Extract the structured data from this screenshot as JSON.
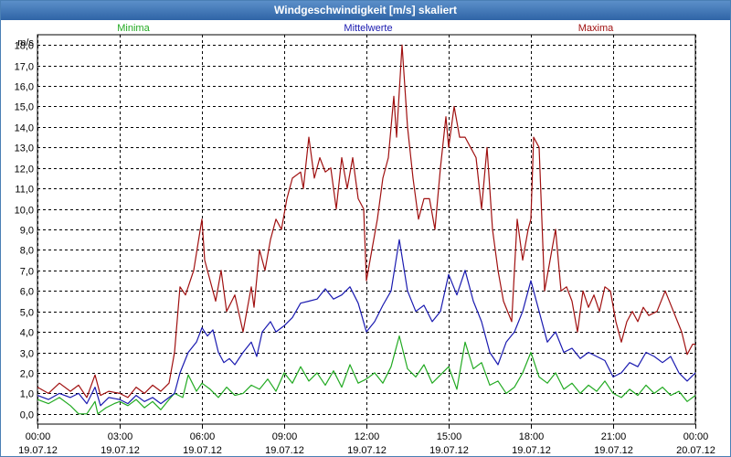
{
  "window": {
    "title": "Windgeschwindigkeit [m/s] skaliert"
  },
  "chart_data": {
    "type": "line",
    "title": "Windgeschwindigkeit [m/s] skaliert",
    "ylabel": "m/s",
    "xlabel": "",
    "ylim": [
      -0.5,
      18.5
    ],
    "yticks": [
      0,
      1,
      2,
      3,
      4,
      5,
      6,
      7,
      8,
      9,
      10,
      11,
      12,
      13,
      14,
      15,
      16,
      17,
      18
    ],
    "ytick_labels": [
      "0,0",
      "1,0",
      "2,0",
      "3,0",
      "4,0",
      "5,0",
      "6,0",
      "7,0",
      "8,0",
      "9,0",
      "10,0",
      "11,0",
      "12,0",
      "13,0",
      "14,0",
      "15,0",
      "16,0",
      "17,0",
      "18,0"
    ],
    "x_range_hours": [
      0,
      24
    ],
    "xticks": [
      {
        "h": 0,
        "time": "00:00",
        "date": "19.07.12"
      },
      {
        "h": 3,
        "time": "03:00",
        "date": "19.07.12"
      },
      {
        "h": 6,
        "time": "06:00",
        "date": "19.07.12"
      },
      {
        "h": 9,
        "time": "09:00",
        "date": "19.07.12"
      },
      {
        "h": 12,
        "time": "12:00",
        "date": "19.07.12"
      },
      {
        "h": 15,
        "time": "15:00",
        "date": "19.07.12"
      },
      {
        "h": 18,
        "time": "18:00",
        "date": "19.07.12"
      },
      {
        "h": 21,
        "time": "21:00",
        "date": "19.07.12"
      },
      {
        "h": 24,
        "time": "00:00",
        "date": "20.07.12"
      }
    ],
    "grid": true,
    "series": [
      {
        "name": "Minima",
        "color": "#22aa22",
        "legend_position": "left",
        "points": [
          [
            0.0,
            0.7
          ],
          [
            0.4,
            0.5
          ],
          [
            0.8,
            0.8
          ],
          [
            1.2,
            0.4
          ],
          [
            1.5,
            0.0
          ],
          [
            1.8,
            0.0
          ],
          [
            2.1,
            0.6
          ],
          [
            2.2,
            0.0
          ],
          [
            2.5,
            0.3
          ],
          [
            2.8,
            0.5
          ],
          [
            3.0,
            0.6
          ],
          [
            3.3,
            0.4
          ],
          [
            3.6,
            0.7
          ],
          [
            3.9,
            0.3
          ],
          [
            4.2,
            0.6
          ],
          [
            4.5,
            0.2
          ],
          [
            4.8,
            0.7
          ],
          [
            5.0,
            1.0
          ],
          [
            5.3,
            0.8
          ],
          [
            5.5,
            1.9
          ],
          [
            5.8,
            1.1
          ],
          [
            6.0,
            1.5
          ],
          [
            6.3,
            1.2
          ],
          [
            6.6,
            0.8
          ],
          [
            6.9,
            1.3
          ],
          [
            7.2,
            0.9
          ],
          [
            7.5,
            1.0
          ],
          [
            7.8,
            1.4
          ],
          [
            8.1,
            1.2
          ],
          [
            8.4,
            1.7
          ],
          [
            8.7,
            1.1
          ],
          [
            9.0,
            2.0
          ],
          [
            9.3,
            1.5
          ],
          [
            9.6,
            2.3
          ],
          [
            9.9,
            1.6
          ],
          [
            10.2,
            2.0
          ],
          [
            10.5,
            1.4
          ],
          [
            10.8,
            2.1
          ],
          [
            11.1,
            1.3
          ],
          [
            11.4,
            2.4
          ],
          [
            11.7,
            1.5
          ],
          [
            12.0,
            1.7
          ],
          [
            12.3,
            2.0
          ],
          [
            12.6,
            1.5
          ],
          [
            12.9,
            2.3
          ],
          [
            13.2,
            3.8
          ],
          [
            13.5,
            2.2
          ],
          [
            13.8,
            1.8
          ],
          [
            14.1,
            2.4
          ],
          [
            14.4,
            1.5
          ],
          [
            14.7,
            1.9
          ],
          [
            15.0,
            2.3
          ],
          [
            15.3,
            1.2
          ],
          [
            15.6,
            3.5
          ],
          [
            15.9,
            2.2
          ],
          [
            16.2,
            2.5
          ],
          [
            16.5,
            1.4
          ],
          [
            16.8,
            1.6
          ],
          [
            17.1,
            1.0
          ],
          [
            17.4,
            1.3
          ],
          [
            17.7,
            2.0
          ],
          [
            18.0,
            3.0
          ],
          [
            18.3,
            1.8
          ],
          [
            18.6,
            1.5
          ],
          [
            18.9,
            2.0
          ],
          [
            19.2,
            1.2
          ],
          [
            19.5,
            1.5
          ],
          [
            19.8,
            1.0
          ],
          [
            20.1,
            1.4
          ],
          [
            20.4,
            1.1
          ],
          [
            20.7,
            1.6
          ],
          [
            21.0,
            1.0
          ],
          [
            21.3,
            0.8
          ],
          [
            21.6,
            1.2
          ],
          [
            21.9,
            0.9
          ],
          [
            22.2,
            1.4
          ],
          [
            22.5,
            1.0
          ],
          [
            22.8,
            1.3
          ],
          [
            23.1,
            0.9
          ],
          [
            23.4,
            1.1
          ],
          [
            23.7,
            0.6
          ],
          [
            24.0,
            0.9
          ]
        ]
      },
      {
        "name": "Mittelwerte",
        "color": "#1a1ab0",
        "legend_position": "center",
        "points": [
          [
            0.0,
            0.9
          ],
          [
            0.4,
            0.7
          ],
          [
            0.8,
            1.0
          ],
          [
            1.2,
            0.8
          ],
          [
            1.5,
            1.0
          ],
          [
            1.8,
            0.5
          ],
          [
            2.1,
            1.3
          ],
          [
            2.3,
            0.4
          ],
          [
            2.6,
            0.8
          ],
          [
            3.0,
            0.7
          ],
          [
            3.3,
            0.5
          ],
          [
            3.6,
            0.9
          ],
          [
            3.9,
            0.6
          ],
          [
            4.2,
            0.8
          ],
          [
            4.5,
            0.5
          ],
          [
            4.8,
            0.8
          ],
          [
            5.0,
            1.0
          ],
          [
            5.2,
            2.0
          ],
          [
            5.5,
            3.0
          ],
          [
            5.8,
            3.5
          ],
          [
            6.0,
            4.2
          ],
          [
            6.2,
            3.8
          ],
          [
            6.4,
            4.1
          ],
          [
            6.6,
            3.0
          ],
          [
            6.8,
            2.5
          ],
          [
            7.0,
            2.7
          ],
          [
            7.2,
            2.4
          ],
          [
            7.5,
            3.0
          ],
          [
            7.8,
            3.5
          ],
          [
            8.0,
            2.8
          ],
          [
            8.2,
            4.0
          ],
          [
            8.5,
            4.5
          ],
          [
            8.7,
            4.0
          ],
          [
            9.0,
            4.3
          ],
          [
            9.3,
            4.7
          ],
          [
            9.6,
            5.4
          ],
          [
            9.9,
            5.5
          ],
          [
            10.2,
            5.6
          ],
          [
            10.5,
            6.1
          ],
          [
            10.8,
            5.6
          ],
          [
            11.1,
            5.8
          ],
          [
            11.4,
            6.2
          ],
          [
            11.7,
            5.4
          ],
          [
            12.0,
            4.0
          ],
          [
            12.3,
            4.5
          ],
          [
            12.6,
            5.3
          ],
          [
            12.9,
            6.0
          ],
          [
            13.2,
            8.5
          ],
          [
            13.5,
            6.0
          ],
          [
            13.8,
            5.0
          ],
          [
            14.1,
            5.3
          ],
          [
            14.4,
            4.5
          ],
          [
            14.7,
            5.0
          ],
          [
            15.0,
            6.8
          ],
          [
            15.3,
            5.8
          ],
          [
            15.6,
            7.0
          ],
          [
            15.9,
            5.5
          ],
          [
            16.2,
            4.5
          ],
          [
            16.5,
            3.0
          ],
          [
            16.8,
            2.4
          ],
          [
            17.1,
            3.5
          ],
          [
            17.4,
            4.0
          ],
          [
            17.7,
            5.0
          ],
          [
            18.0,
            6.5
          ],
          [
            18.3,
            5.0
          ],
          [
            18.6,
            3.5
          ],
          [
            18.9,
            4.0
          ],
          [
            19.2,
            3.0
          ],
          [
            19.5,
            3.2
          ],
          [
            19.8,
            2.7
          ],
          [
            20.1,
            3.0
          ],
          [
            20.4,
            2.8
          ],
          [
            20.7,
            2.6
          ],
          [
            21.0,
            1.8
          ],
          [
            21.3,
            2.0
          ],
          [
            21.6,
            2.5
          ],
          [
            21.9,
            2.3
          ],
          [
            22.2,
            3.0
          ],
          [
            22.5,
            2.8
          ],
          [
            22.8,
            2.5
          ],
          [
            23.1,
            2.8
          ],
          [
            23.4,
            2.0
          ],
          [
            23.7,
            1.6
          ],
          [
            24.0,
            2.0
          ]
        ]
      },
      {
        "name": "Maxima",
        "color": "#a01010",
        "legend_position": "right",
        "points": [
          [
            0.0,
            1.3
          ],
          [
            0.4,
            1.0
          ],
          [
            0.8,
            1.5
          ],
          [
            1.2,
            1.1
          ],
          [
            1.5,
            1.4
          ],
          [
            1.8,
            0.8
          ],
          [
            2.1,
            1.9
          ],
          [
            2.3,
            0.9
          ],
          [
            2.6,
            1.1
          ],
          [
            3.0,
            1.0
          ],
          [
            3.3,
            0.8
          ],
          [
            3.6,
            1.3
          ],
          [
            3.9,
            1.0
          ],
          [
            4.2,
            1.4
          ],
          [
            4.5,
            1.1
          ],
          [
            4.8,
            1.5
          ],
          [
            5.0,
            3.0
          ],
          [
            5.2,
            6.2
          ],
          [
            5.4,
            5.8
          ],
          [
            5.7,
            7.0
          ],
          [
            6.0,
            9.5
          ],
          [
            6.1,
            7.5
          ],
          [
            6.3,
            6.5
          ],
          [
            6.5,
            5.5
          ],
          [
            6.7,
            7.0
          ],
          [
            6.9,
            5.0
          ],
          [
            7.2,
            5.8
          ],
          [
            7.5,
            4.0
          ],
          [
            7.8,
            6.2
          ],
          [
            7.9,
            5.2
          ],
          [
            8.1,
            8.0
          ],
          [
            8.3,
            7.0
          ],
          [
            8.5,
            8.5
          ],
          [
            8.7,
            9.5
          ],
          [
            8.9,
            9.0
          ],
          [
            9.1,
            10.5
          ],
          [
            9.3,
            11.5
          ],
          [
            9.6,
            11.8
          ],
          [
            9.7,
            11.0
          ],
          [
            9.9,
            13.5
          ],
          [
            10.1,
            11.5
          ],
          [
            10.3,
            12.5
          ],
          [
            10.5,
            11.8
          ],
          [
            10.7,
            12.0
          ],
          [
            10.9,
            10.0
          ],
          [
            11.1,
            12.5
          ],
          [
            11.3,
            11.0
          ],
          [
            11.5,
            12.5
          ],
          [
            11.7,
            10.5
          ],
          [
            11.9,
            10.0
          ],
          [
            12.0,
            6.5
          ],
          [
            12.2,
            8.0
          ],
          [
            12.4,
            9.5
          ],
          [
            12.6,
            11.5
          ],
          [
            12.8,
            12.5
          ],
          [
            13.0,
            15.5
          ],
          [
            13.1,
            13.5
          ],
          [
            13.3,
            18.0
          ],
          [
            13.5,
            14.0
          ],
          [
            13.7,
            11.5
          ],
          [
            13.9,
            9.5
          ],
          [
            14.1,
            10.5
          ],
          [
            14.3,
            10.5
          ],
          [
            14.5,
            9.0
          ],
          [
            14.7,
            12.0
          ],
          [
            14.9,
            14.5
          ],
          [
            15.0,
            13.0
          ],
          [
            15.2,
            15.0
          ],
          [
            15.4,
            13.5
          ],
          [
            15.6,
            13.5
          ],
          [
            15.8,
            13.0
          ],
          [
            16.0,
            12.5
          ],
          [
            16.2,
            10.0
          ],
          [
            16.4,
            13.0
          ],
          [
            16.6,
            9.0
          ],
          [
            16.8,
            7.0
          ],
          [
            17.0,
            5.5
          ],
          [
            17.3,
            4.5
          ],
          [
            17.5,
            9.5
          ],
          [
            17.7,
            7.5
          ],
          [
            17.9,
            9.0
          ],
          [
            18.0,
            9.5
          ],
          [
            18.1,
            13.5
          ],
          [
            18.3,
            13.0
          ],
          [
            18.5,
            6.0
          ],
          [
            18.7,
            7.5
          ],
          [
            18.9,
            9.0
          ],
          [
            19.1,
            6.0
          ],
          [
            19.3,
            6.2
          ],
          [
            19.5,
            5.5
          ],
          [
            19.7,
            4.0
          ],
          [
            19.9,
            6.0
          ],
          [
            20.1,
            5.2
          ],
          [
            20.3,
            5.8
          ],
          [
            20.5,
            5.0
          ],
          [
            20.7,
            6.2
          ],
          [
            20.9,
            6.0
          ],
          [
            21.1,
            4.5
          ],
          [
            21.3,
            3.5
          ],
          [
            21.5,
            4.5
          ],
          [
            21.7,
            5.0
          ],
          [
            21.9,
            4.5
          ],
          [
            22.1,
            5.2
          ],
          [
            22.3,
            4.8
          ],
          [
            22.6,
            5.0
          ],
          [
            22.9,
            6.0
          ],
          [
            23.2,
            5.0
          ],
          [
            23.5,
            4.0
          ],
          [
            23.7,
            2.9
          ],
          [
            23.9,
            3.4
          ],
          [
            24.0,
            3.4
          ]
        ]
      }
    ]
  }
}
